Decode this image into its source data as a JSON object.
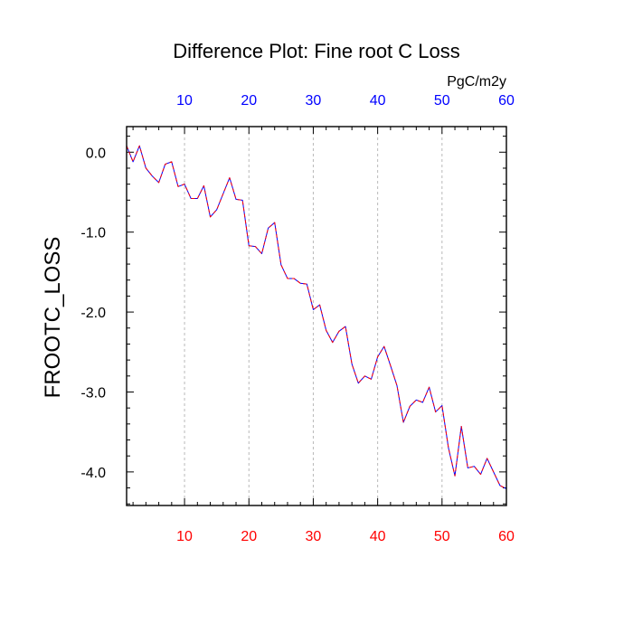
{
  "colors": {
    "bottom_ticks": "#ff0000",
    "top_ticks": "#0000ff",
    "series_1": "#0000ff",
    "series_2": "#ff0000",
    "text": "#000000",
    "grid": "#b9b9b9"
  },
  "chart_data": {
    "type": "line",
    "title": "Difference Plot: Fine root C Loss",
    "units_label": "PgC/m2y",
    "ylabel": "FROOTC_LOSS",
    "xlabel": "",
    "xlim": [
      1,
      60
    ],
    "ylim": [
      -4.42,
      0.32
    ],
    "x_ticks": [
      10,
      20,
      30,
      40,
      50,
      60
    ],
    "x_tick_labels": [
      "10",
      "20",
      "30",
      "40",
      "50",
      "60"
    ],
    "top_x_tick_labels": [
      "10",
      "20",
      "30",
      "40",
      "50",
      "60"
    ],
    "y_ticks": [
      0,
      -1,
      -2,
      -3,
      -4
    ],
    "y_tick_labels": [
      "0.0",
      "-1.0",
      "-2.0",
      "-3.0",
      "-4.0"
    ],
    "grid": "vertical dashed at major x ticks",
    "x": [
      1,
      2,
      3,
      4,
      5,
      6,
      7,
      8,
      9,
      10,
      11,
      12,
      13,
      14,
      15,
      16,
      17,
      18,
      19,
      20,
      21,
      22,
      23,
      24,
      25,
      26,
      27,
      28,
      29,
      30,
      31,
      32,
      33,
      34,
      35,
      36,
      37,
      38,
      39,
      40,
      41,
      42,
      43,
      44,
      45,
      46,
      47,
      48,
      49,
      50,
      51,
      52,
      53,
      54,
      55,
      56,
      57,
      58,
      59,
      60
    ],
    "series": [
      {
        "style": "solid",
        "values": [
          0.08,
          -0.12,
          0.08,
          -0.2,
          -0.3,
          -0.38,
          -0.15,
          -0.12,
          -0.43,
          -0.4,
          -0.58,
          -0.58,
          -0.42,
          -0.81,
          -0.72,
          -0.52,
          -0.32,
          -0.59,
          -0.6,
          -1.17,
          -1.18,
          -1.27,
          -0.95,
          -0.88,
          -1.41,
          -1.58,
          -1.58,
          -1.64,
          -1.65,
          -1.97,
          -1.91,
          -2.23,
          -2.38,
          -2.24,
          -2.18,
          -2.65,
          -2.89,
          -2.8,
          -2.84,
          -2.56,
          -2.43,
          -2.67,
          -2.92,
          -3.38,
          -3.18,
          -3.1,
          -3.13,
          -2.94,
          -3.25,
          -3.17,
          -3.7,
          -4.05,
          -3.43,
          -3.95,
          -3.93,
          -4.03,
          -3.83,
          -4,
          -4.17,
          -4.21
        ]
      },
      {
        "style": "dashed",
        "values": [
          0.08,
          -0.12,
          0.08,
          -0.2,
          -0.3,
          -0.38,
          -0.15,
          -0.12,
          -0.43,
          -0.4,
          -0.58,
          -0.58,
          -0.42,
          -0.81,
          -0.72,
          -0.52,
          -0.32,
          -0.59,
          -0.6,
          -1.17,
          -1.18,
          -1.27,
          -0.95,
          -0.88,
          -1.41,
          -1.58,
          -1.58,
          -1.64,
          -1.65,
          -1.97,
          -1.91,
          -2.23,
          -2.38,
          -2.24,
          -2.18,
          -2.65,
          -2.89,
          -2.8,
          -2.84,
          -2.56,
          -2.43,
          -2.67,
          -2.92,
          -3.38,
          -3.18,
          -3.1,
          -3.13,
          -2.94,
          -3.25,
          -3.17,
          -3.7,
          -4.05,
          -3.43,
          -3.95,
          -3.93,
          -4.03,
          -3.83,
          -4,
          -4.17,
          -4.21
        ]
      }
    ]
  }
}
